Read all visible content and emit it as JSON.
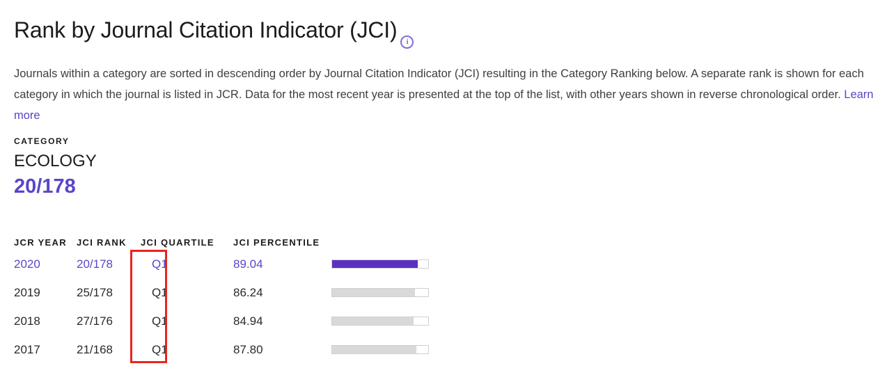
{
  "header": {
    "title": "Rank by Journal Citation Indicator (JCI)",
    "info_icon": "info-icon",
    "description": "Journals within a category are sorted in descending order by Journal Citation Indicator (JCI) resulting in the Category Ranking below. A separate rank is shown for each category in which the journal is listed in JCR. Data for the most recent year is presented at the top of the list, with other years shown in reverse chronological order.",
    "learn_more_label": "Learn more"
  },
  "category": {
    "label": "CATEGORY",
    "name": "ECOLOGY",
    "rank": "20/178"
  },
  "table": {
    "headers": [
      "JCR YEAR",
      "JCI RANK",
      "JCI QUARTILE",
      "JCI PERCENTILE"
    ],
    "rows": [
      {
        "year": "2020",
        "rank": "20/178",
        "quartile": "Q1",
        "percentile": "89.04",
        "highlighted": true
      },
      {
        "year": "2019",
        "rank": "25/178",
        "quartile": "Q1",
        "percentile": "86.24",
        "highlighted": false
      },
      {
        "year": "2018",
        "rank": "27/176",
        "quartile": "Q1",
        "percentile": "84.94",
        "highlighted": false
      },
      {
        "year": "2017",
        "rank": "21/168",
        "quartile": "Q1",
        "percentile": "87.80",
        "highlighted": false
      }
    ],
    "annotation": "red box highlighting JCI QUARTILE column"
  },
  "colors": {
    "link_purple": "#5846c8",
    "bar_purple": "#5b2fc0",
    "bar_gray": "#d9d9d9",
    "red_box": "#e8251d",
    "info_icon_purple": "#7d6ed6"
  }
}
